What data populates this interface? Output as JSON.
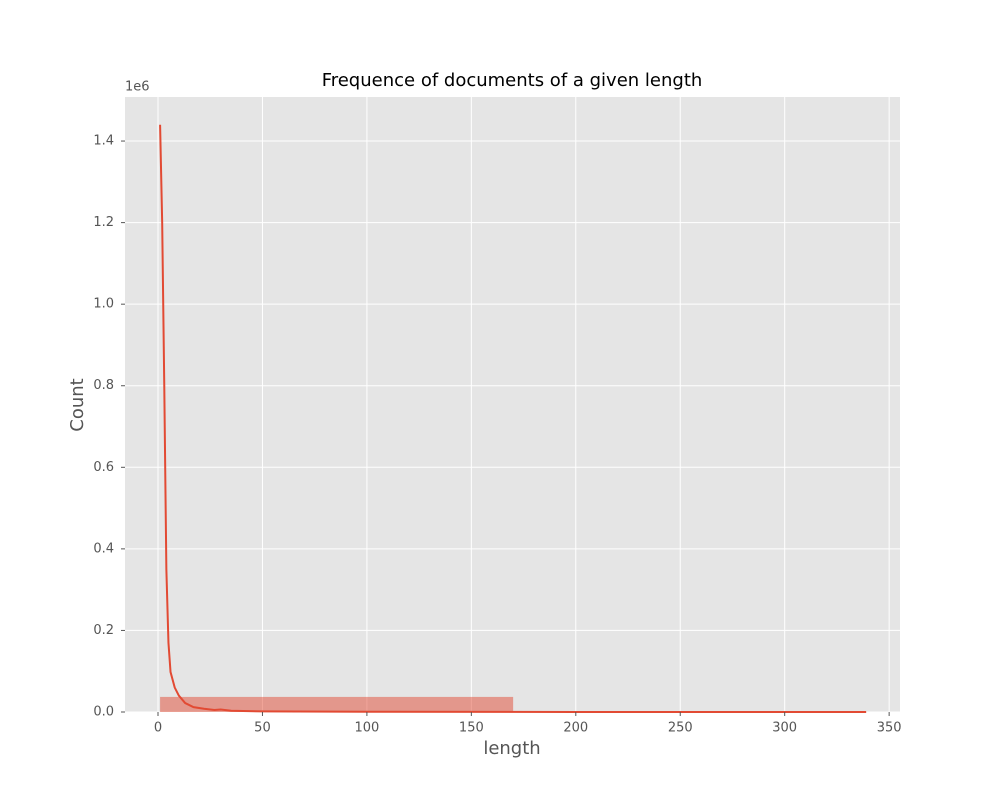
{
  "chart_data": {
    "type": "histogram",
    "title": "Frequence of documents of a given length",
    "x_label": "length",
    "y_label": "Count",
    "y_offset_label": "1e6",
    "bins": [
      1,
      170,
      339
    ],
    "counts": [
      37000,
      500
    ],
    "color": "#E24A33",
    "line": {
      "color": "#E24A33",
      "x": [
        1,
        2,
        3,
        4,
        5,
        6,
        8,
        10,
        13,
        17,
        22,
        27,
        30,
        35,
        50,
        100,
        200,
        339
      ],
      "values": [
        1440000,
        1200000,
        800000,
        350000,
        170000,
        98000,
        60000,
        40000,
        22000,
        12000,
        8000,
        5000,
        6000,
        3000,
        1500,
        500,
        100,
        50
      ]
    },
    "xlim": [
      -15.8,
      355.2
    ],
    "xticks": [
      0,
      50,
      100,
      150,
      200,
      250,
      300,
      350
    ],
    "ylim": [
      0,
      1508000
    ],
    "yticks": [
      {
        "value": 0,
        "label": "0.0"
      },
      {
        "value": 200000,
        "label": "0.2"
      },
      {
        "value": 400000,
        "label": "0.4"
      },
      {
        "value": 600000,
        "label": "0.6"
      },
      {
        "value": 800000,
        "label": "0.8"
      },
      {
        "value": 1000000,
        "label": "1.0"
      },
      {
        "value": 1200000,
        "label": "1.2"
      },
      {
        "value": 1400000,
        "label": "1.4"
      }
    ],
    "grid": true
  }
}
